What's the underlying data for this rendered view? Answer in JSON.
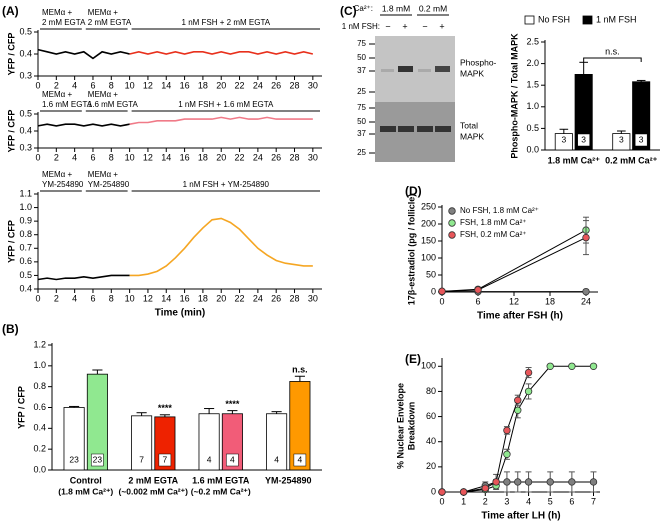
{
  "chart_data": [
    {
      "type": "line",
      "panel": "(A)",
      "ylabel": "YFP / CFP",
      "x": [
        0,
        1,
        2,
        3,
        4,
        5,
        6,
        7,
        8,
        9,
        10,
        11,
        12,
        13,
        14,
        15,
        16,
        17,
        18,
        19,
        20,
        21,
        22,
        23,
        24,
        25,
        26,
        27,
        28,
        29,
        30
      ],
      "xlim": [
        0,
        31
      ],
      "xticks": [
        0,
        2,
        4,
        6,
        8,
        10,
        12,
        14,
        16,
        18,
        20,
        22,
        24,
        26,
        28,
        30
      ],
      "ylim": [
        0.3,
        0.5
      ],
      "yticks": [
        0.3,
        0.4,
        0.5
      ],
      "periods": [
        {
          "label": [
            "MEMα +",
            "2 mM EGTA"
          ],
          "start": 0,
          "end": 5
        },
        {
          "label": [
            "MEMα +",
            "2 mM EGTA"
          ],
          "start": 5,
          "end": 10
        },
        {
          "label": [
            "1 nM FSH + 2 mM EGTA"
          ],
          "start": 10,
          "end": 31
        }
      ],
      "series": [
        {
          "color": "#000000",
          "values": [
            0.42,
            0.41,
            0.4,
            0.41,
            0.4,
            0.41,
            0.38,
            0.41,
            0.4,
            0.41,
            0.4,
            null,
            null,
            null,
            null,
            null,
            null,
            null,
            null,
            null,
            null,
            null,
            null,
            null,
            null,
            null,
            null,
            null,
            null,
            null,
            null
          ]
        },
        {
          "color": "#e8301c",
          "values": [
            null,
            null,
            null,
            null,
            null,
            null,
            null,
            null,
            null,
            null,
            0.4,
            0.41,
            0.4,
            0.41,
            0.4,
            0.41,
            0.4,
            0.41,
            0.41,
            0.4,
            0.41,
            0.4,
            0.41,
            0.41,
            0.4,
            0.41,
            0.4,
            0.41,
            0.4,
            0.41,
            0.4
          ]
        }
      ]
    },
    {
      "type": "line",
      "ylabel": "YFP / CFP",
      "x": [
        0,
        1,
        2,
        3,
        4,
        5,
        6,
        7,
        8,
        9,
        10,
        11,
        12,
        13,
        14,
        15,
        16,
        17,
        18,
        19,
        20,
        21,
        22,
        23,
        24,
        25,
        26,
        27,
        28,
        29,
        30
      ],
      "xlim": [
        0,
        31
      ],
      "xticks": [
        0,
        2,
        4,
        6,
        8,
        10,
        12,
        14,
        16,
        18,
        20,
        22,
        24,
        26,
        28,
        30
      ],
      "ylim": [
        0.3,
        0.5
      ],
      "yticks": [
        0.3,
        0.4,
        0.5
      ],
      "periods": [
        {
          "label": [
            "MEMα +",
            "1.6 mM EGTA"
          ],
          "start": 0,
          "end": 5
        },
        {
          "label": [
            "MEMα +",
            "1.6 mM EGTA"
          ],
          "start": 5,
          "end": 10
        },
        {
          "label": [
            "1 nM FSH + 1.6 mM EGTA"
          ],
          "start": 10,
          "end": 31
        }
      ],
      "series": [
        {
          "color": "#000000",
          "values": [
            0.43,
            0.44,
            0.43,
            0.44,
            0.44,
            0.43,
            0.44,
            0.43,
            0.44,
            0.43,
            0.44,
            null,
            null,
            null,
            null,
            null,
            null,
            null,
            null,
            null,
            null,
            null,
            null,
            null,
            null,
            null,
            null,
            null,
            null,
            null,
            null
          ]
        },
        {
          "color": "#f07a88",
          "values": [
            null,
            null,
            null,
            null,
            null,
            null,
            null,
            null,
            null,
            null,
            0.44,
            0.45,
            0.45,
            0.46,
            0.46,
            0.46,
            0.47,
            0.47,
            0.47,
            0.47,
            0.48,
            0.47,
            0.48,
            0.47,
            0.47,
            0.48,
            0.47,
            0.47,
            0.47,
            0.47,
            0.47
          ]
        }
      ]
    },
    {
      "type": "line",
      "ylabel": "YFP / CFP",
      "xlabel": "Time (min)",
      "x": [
        0,
        1,
        2,
        3,
        4,
        5,
        6,
        7,
        8,
        9,
        10,
        11,
        12,
        13,
        14,
        15,
        16,
        17,
        18,
        19,
        20,
        21,
        22,
        23,
        24,
        25,
        26,
        27,
        28,
        29,
        30
      ],
      "xlim": [
        0,
        31
      ],
      "xticks": [
        0,
        2,
        4,
        6,
        8,
        10,
        12,
        14,
        16,
        18,
        20,
        22,
        24,
        26,
        28,
        30
      ],
      "ylim": [
        0.4,
        1.1
      ],
      "yticks": [
        0.4,
        0.5,
        0.6,
        0.7,
        0.8,
        0.9,
        {
          "value": 1,
          "label": "1.0"
        },
        1.1
      ],
      "periods": [
        {
          "label": [
            "MEMα +",
            "YM-254890"
          ],
          "start": 0,
          "end": 5
        },
        {
          "label": [
            "MEMα +",
            "YM-254890"
          ],
          "start": 5,
          "end": 10
        },
        {
          "label": [
            "1 nM FSH + YM-254890"
          ],
          "start": 10,
          "end": 31
        }
      ],
      "series": [
        {
          "color": "#000000",
          "values": [
            0.47,
            0.48,
            0.47,
            0.48,
            0.48,
            0.49,
            0.48,
            0.49,
            0.5,
            0.5,
            0.5,
            null,
            null,
            null,
            null,
            null,
            null,
            null,
            null,
            null,
            null,
            null,
            null,
            null,
            null,
            null,
            null,
            null,
            null,
            null,
            null
          ]
        },
        {
          "color": "#f5a623",
          "values": [
            null,
            null,
            null,
            null,
            null,
            null,
            null,
            null,
            null,
            null,
            0.5,
            0.5,
            0.51,
            0.53,
            0.57,
            0.63,
            0.7,
            0.78,
            0.85,
            0.91,
            0.92,
            0.89,
            0.84,
            0.77,
            0.7,
            0.65,
            0.61,
            0.59,
            0.58,
            0.57,
            0.57
          ]
        }
      ]
    },
    {
      "type": "bar",
      "panel": "(B)",
      "ylabel": "YFP / CFP",
      "categories": [
        "Control",
        "2 mM EGTA",
        "1.6 mM EGTA",
        "YM-254890"
      ],
      "category_notes": [
        "(1.8 mM Ca²⁺)",
        "(~0.002 mM Ca²⁺)",
        "(~0.2 mM Ca²⁺)",
        null
      ],
      "ylim": [
        0,
        1.2
      ],
      "yticks": [
        {
          "value": 0,
          "label": "0.0"
        },
        0.2,
        0.4,
        0.6,
        0.8,
        {
          "value": 1,
          "label": "1.0"
        },
        1.2
      ],
      "annotations": [
        null,
        "****",
        "****",
        "n.s."
      ],
      "series": [
        {
          "color": "#ffffff",
          "values": [
            0.6,
            0.52,
            0.54,
            0.54
          ],
          "errors": [
            0.01,
            0.03,
            0.05,
            0.02
          ],
          "n": [
            23,
            7,
            4,
            4
          ]
        },
        {
          "colors": [
            "#90e890",
            "#ee2200",
            "#f25c78",
            "#ff9900"
          ],
          "values": [
            0.92,
            0.51,
            0.54,
            0.85
          ],
          "errors": [
            0.04,
            0.02,
            0.03,
            0.05
          ],
          "n": [
            23,
            7,
            4,
            4
          ]
        }
      ]
    },
    {
      "type": "bar",
      "ylabel": "Phospho-MAPK / Total MAPK",
      "categories": [
        "1.8 mM Ca²⁺",
        "0.2 mM Ca²⁺"
      ],
      "ylim": [
        0,
        2.5
      ],
      "yticks": [
        {
          "value": 0,
          "label": "0.0"
        },
        0.5,
        {
          "value": 1,
          "label": "1.0"
        },
        1.5,
        {
          "value": 2,
          "label": "2.0"
        },
        2.5
      ],
      "comparison": "n.s.",
      "series": [
        {
          "name": "No FSH",
          "color": "#ffffff",
          "values": [
            0.38,
            0.38
          ],
          "errors": [
            0.1,
            0.06
          ],
          "n": [
            3,
            3
          ]
        },
        {
          "name": "1 nM FSH",
          "color": "#000000",
          "values": [
            1.75,
            1.58
          ],
          "errors": [
            0.28,
            0.03
          ],
          "n": [
            3,
            3
          ]
        }
      ]
    },
    {
      "type": "line",
      "panel": "(D)",
      "markers": true,
      "legend": "top-left",
      "ylabel": "17β-estradiol (pg / follicle)",
      "xlabel": "Time after FSH (h)",
      "x": [
        0,
        6,
        24
      ],
      "xlim": [
        0,
        26
      ],
      "xticks": [
        0,
        6,
        12,
        18,
        24
      ],
      "ylim": [
        0,
        250
      ],
      "yticks": [
        0,
        50,
        100,
        150,
        200,
        250
      ],
      "series": [
        {
          "name": "No FSH, 1.8 mM Ca²⁺",
          "color": "#808080",
          "values": [
            1,
            1,
            1
          ],
          "errors": [
            0,
            0,
            0
          ]
        },
        {
          "name": "FSH, 1.8 mM Ca²⁺",
          "color": "#90e890",
          "values": [
            2,
            8,
            182
          ],
          "errors": [
            1,
            2,
            38
          ]
        },
        {
          "name": "FSH, 0.2 mM Ca²⁺",
          "color": "#e8565a",
          "values": [
            2,
            6,
            160
          ],
          "errors": [
            1,
            2,
            50
          ]
        }
      ]
    },
    {
      "type": "line",
      "panel": "(E)",
      "markers": true,
      "ylabel": [
        "% Nuclear Envelope",
        "Breakdown"
      ],
      "xlabel": "Time after LH (h)",
      "x": [
        0,
        1,
        2,
        2.5,
        3,
        3.5,
        4,
        5,
        6,
        7
      ],
      "xlim": [
        0,
        7.3
      ],
      "xticks": [
        0,
        1,
        2,
        3,
        4,
        5,
        6,
        7
      ],
      "ylim": [
        0,
        105
      ],
      "yticks": [
        0,
        20,
        40,
        60,
        80,
        100
      ],
      "series": [
        {
          "color": "#808080",
          "values": [
            0,
            0,
            5,
            8,
            8,
            8,
            8,
            8,
            8,
            8
          ],
          "errors": [
            0,
            0,
            3,
            6,
            8,
            8,
            8,
            8,
            8,
            8
          ]
        },
        {
          "color": "#90e890",
          "values": [
            0,
            0,
            2,
            5,
            30,
            65,
            80,
            100,
            100,
            100
          ],
          "errors": [
            0,
            0,
            1,
            2,
            4,
            6,
            6,
            0,
            0,
            0
          ]
        },
        {
          "color": "#e8565a",
          "values": [
            0,
            0,
            3,
            8,
            49,
            73,
            95,
            null,
            null,
            null
          ],
          "errors": [
            0,
            0,
            1,
            2,
            3,
            4,
            4,
            null,
            null,
            null
          ]
        }
      ]
    }
  ],
  "blot": {
    "panel": "(C)",
    "ca_label": "Ca²⁺:",
    "ca_levels": [
      "1.8 mM",
      "0.2 mM"
    ],
    "fsh_label": "1 nM FSH:",
    "fsh_signs": [
      "−",
      "+",
      "−",
      "+"
    ],
    "ladder_top": [
      "75",
      "50",
      "37",
      "25"
    ],
    "ladder_bottom": [
      "75",
      "50",
      "37",
      "25"
    ],
    "band_top": [
      "Phospho-",
      "MAPK"
    ],
    "band_bottom": [
      "Total",
      "MAPK"
    ]
  }
}
